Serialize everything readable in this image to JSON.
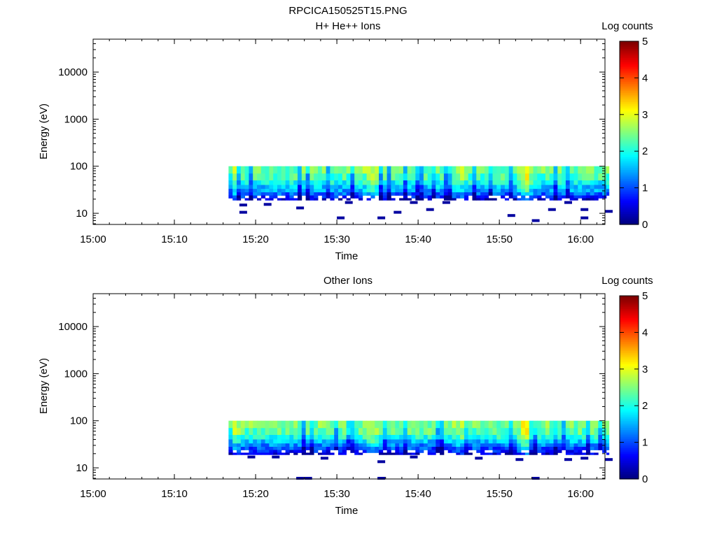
{
  "figure": {
    "title": "RPCICA150525T15.PNG"
  },
  "chart_data": [
    {
      "type": "heatmap",
      "title": "H+ He++ Ions",
      "xlabel": "Time",
      "ylabel": "Energy (eV)",
      "x_scale": "time",
      "y_scale": "log",
      "xlim": [
        "15:00",
        "16:03"
      ],
      "ylim": [
        5.8,
        50000
      ],
      "x_ticks": [
        "15:00",
        "15:10",
        "15:20",
        "15:30",
        "15:40",
        "15:50",
        "16:00"
      ],
      "y_ticks": [
        10,
        100,
        1000,
        10000
      ],
      "y_tick_labels": [
        "10",
        "100",
        "1000",
        "10000"
      ],
      "colorbar": {
        "label": "Log counts",
        "range": [
          0,
          5
        ],
        "ticks": [
          "0",
          "1",
          "2",
          "3",
          "4",
          "5"
        ],
        "colormap": "jet"
      },
      "data_time_range": [
        "15:16:40",
        "16:03:30"
      ],
      "data_energy_range": [
        17,
        100
      ],
      "energy_bands": [
        {
          "lo": 70,
          "hi": 100,
          "level": 2.4
        },
        {
          "lo": 50,
          "hi": 70,
          "level": 2.2
        },
        {
          "lo": 40,
          "hi": 50,
          "level": 1.9
        },
        {
          "lo": 33,
          "hi": 40,
          "level": 1.6
        },
        {
          "lo": 28,
          "hi": 33,
          "level": 1.4
        },
        {
          "lo": 24,
          "hi": 28,
          "level": 1.1
        },
        {
          "lo": 21,
          "hi": 24,
          "level": 0.8
        },
        {
          "lo": 19,
          "hi": 21,
          "level": 0.4
        }
      ],
      "bright_times": [
        {
          "time": "15:17",
          "boost": 0.6
        },
        {
          "time": "15:34",
          "boost": 0.6
        },
        {
          "time": "15:53",
          "boost": 0.9
        },
        {
          "time": "15:45",
          "boost": 0.4
        }
      ],
      "sparse_points": [
        {
          "time": "15:18",
          "energy": 15
        },
        {
          "time": "15:18",
          "energy": 10.5
        },
        {
          "time": "15:21",
          "energy": 15.5
        },
        {
          "time": "15:25",
          "energy": 13
        },
        {
          "time": "15:30",
          "energy": 8
        },
        {
          "time": "15:31",
          "energy": 17
        },
        {
          "time": "15:35",
          "energy": 8
        },
        {
          "time": "15:37",
          "energy": 10.5
        },
        {
          "time": "15:39",
          "energy": 17
        },
        {
          "time": "15:41",
          "energy": 12
        },
        {
          "time": "15:43",
          "energy": 17
        },
        {
          "time": "15:51",
          "energy": 9
        },
        {
          "time": "15:54",
          "energy": 7
        },
        {
          "time": "15:56",
          "energy": 12
        },
        {
          "time": "15:58",
          "energy": 17
        },
        {
          "time": "16:00",
          "energy": 12
        },
        {
          "time": "16:00",
          "energy": 8
        },
        {
          "time": "16:03",
          "energy": 11
        }
      ]
    },
    {
      "type": "heatmap",
      "title": "Other Ions",
      "xlabel": "Time",
      "ylabel": "Energy (eV)",
      "x_scale": "time",
      "y_scale": "log",
      "xlim": [
        "15:00",
        "16:03"
      ],
      "ylim": [
        5.8,
        50000
      ],
      "x_ticks": [
        "15:00",
        "15:10",
        "15:20",
        "15:30",
        "15:40",
        "15:50",
        "16:00"
      ],
      "y_ticks": [
        10,
        100,
        1000,
        10000
      ],
      "y_tick_labels": [
        "10",
        "100",
        "1000",
        "10000"
      ],
      "colorbar": {
        "label": "Log counts",
        "range": [
          0,
          5
        ],
        "ticks": [
          "0",
          "1",
          "2",
          "3",
          "4",
          "5"
        ],
        "colormap": "jet"
      },
      "data_time_range": [
        "15:16:40",
        "16:03:30"
      ],
      "data_energy_range": [
        17,
        100
      ],
      "energy_bands": [
        {
          "lo": 70,
          "hi": 100,
          "level": 2.5
        },
        {
          "lo": 50,
          "hi": 70,
          "level": 2.3
        },
        {
          "lo": 40,
          "hi": 50,
          "level": 2.0
        },
        {
          "lo": 33,
          "hi": 40,
          "level": 1.6
        },
        {
          "lo": 28,
          "hi": 33,
          "level": 1.3
        },
        {
          "lo": 24,
          "hi": 28,
          "level": 1.0
        },
        {
          "lo": 21,
          "hi": 24,
          "level": 0.7
        },
        {
          "lo": 19,
          "hi": 21,
          "level": 0.4
        }
      ],
      "bright_times": [
        {
          "time": "15:17",
          "boost": 0.5
        },
        {
          "time": "15:34",
          "boost": 0.6
        },
        {
          "time": "15:53",
          "boost": 0.9
        },
        {
          "time": "15:45",
          "boost": 0.4
        }
      ],
      "sparse_points": [
        {
          "time": "15:19",
          "energy": 17
        },
        {
          "time": "15:22",
          "energy": 17
        },
        {
          "time": "15:25",
          "energy": 6
        },
        {
          "time": "15:26",
          "energy": 6
        },
        {
          "time": "15:28",
          "energy": 16
        },
        {
          "time": "15:35",
          "energy": 13.5
        },
        {
          "time": "15:35",
          "energy": 6
        },
        {
          "time": "15:39",
          "energy": 17
        },
        {
          "time": "15:47",
          "energy": 16
        },
        {
          "time": "15:52",
          "energy": 15
        },
        {
          "time": "15:54",
          "energy": 6
        },
        {
          "time": "15:58",
          "energy": 15
        },
        {
          "time": "16:00",
          "energy": 16
        },
        {
          "time": "16:03",
          "energy": 15
        }
      ]
    }
  ]
}
